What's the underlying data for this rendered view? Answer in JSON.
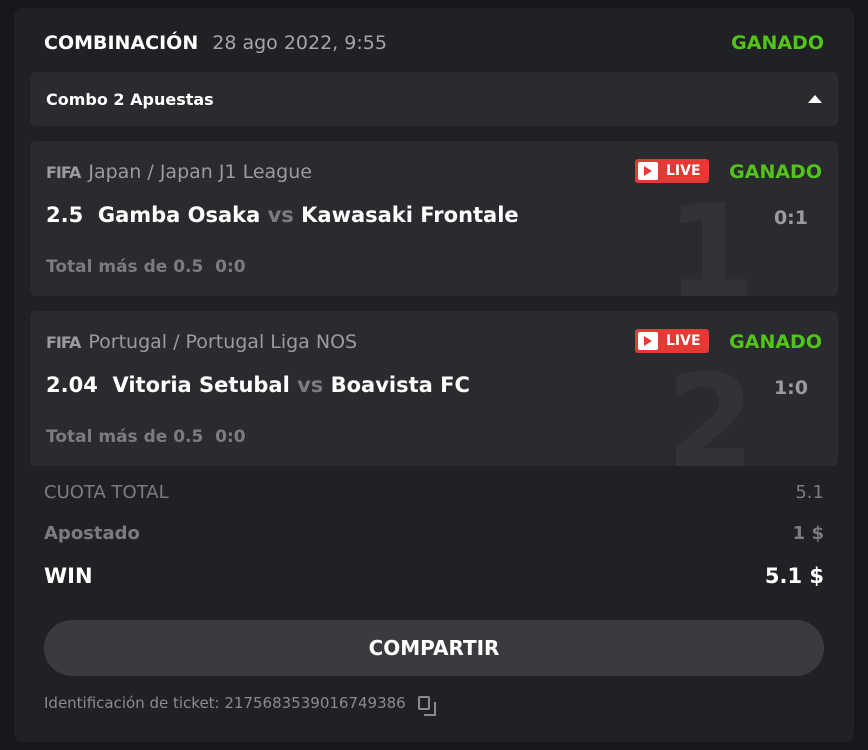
{
  "header": {
    "title": "COMBINACIÓN",
    "date": "28 ago 2022, 9:55",
    "status": "GANADO"
  },
  "combo": {
    "label": "Combo 2 Apuestas"
  },
  "bets": [
    {
      "logo": "FIFA",
      "league": "Japan / Japan J1 League",
      "live": "LIVE",
      "status": "GANADO",
      "odds": "2.5",
      "home": "Gamba Osaka",
      "vs": "vs",
      "away": "Kawasaki Frontale",
      "score": "0:1",
      "number": "1",
      "market": "Total más de 0.5",
      "market_score": "0:0"
    },
    {
      "logo": "FIFA",
      "league": "Portugal / Portugal Liga NOS",
      "live": "LIVE",
      "status": "GANADO",
      "odds": "2.04",
      "home": "Vitoria Setubal",
      "vs": "vs",
      "away": "Boavista FC",
      "score": "1:0",
      "number": "2",
      "market": "Total más de 0.5",
      "market_score": "0:0"
    }
  ],
  "summary": {
    "total_odds_label": "CUOTA TOTAL",
    "total_odds": "5.1",
    "staked_label": "Apostado",
    "staked": "1 $",
    "win_label": "WIN",
    "win": "5.1 $"
  },
  "share_label": "COMPARTIR",
  "ticket": {
    "label": "Identificación de ticket: 2175683539016749386"
  }
}
